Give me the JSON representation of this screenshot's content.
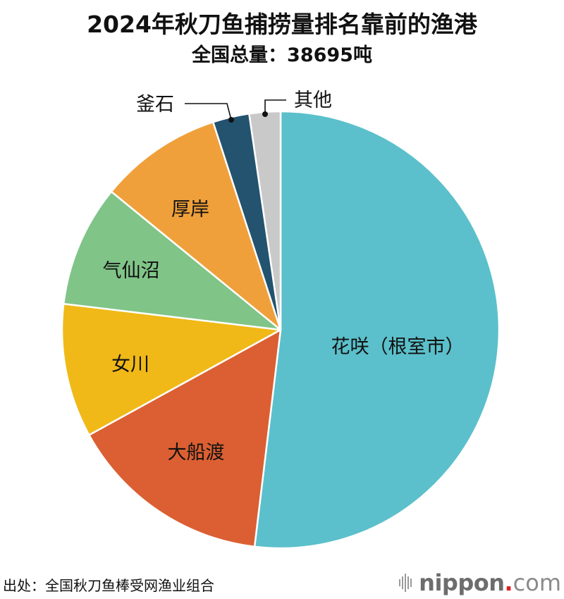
{
  "title": "2024年秋刀鱼捕捞量排名靠前的渔港",
  "subtitle": "全国总量：38695吨",
  "source": "出处：全国秋刀鱼棒受网渔业组合",
  "logo": {
    "name": "nippon",
    "dot": ".",
    "tld": "com",
    "bars-icon": "sound-bars-icon"
  },
  "chart_data": {
    "type": "pie",
    "title": "2024年秋刀鱼捕捞量排名靠前的渔港",
    "subtitle": "全国总量：38695吨",
    "total": 38695,
    "unit": "吨",
    "start_angle": "12 o'clock, clockwise",
    "categories": [
      "花咲（根室市）",
      "大船渡",
      "女川",
      "气仙沼",
      "厚岸",
      "釜石",
      "其他"
    ],
    "values_percent_estimated": [
      51.9,
      15.1,
      9.9,
      9.0,
      9.1,
      2.7,
      2.3
    ],
    "colors": [
      "#5bc0cb",
      "#db5f32",
      "#f0b917",
      "#80c488",
      "#f0a03a",
      "#23536f",
      "#c9c9c9"
    ],
    "slices": [
      {
        "label": "花咲（根室市）",
        "percent": 51.9,
        "color": "#5bc0cb"
      },
      {
        "label": "大船渡",
        "percent": 15.1,
        "color": "#db5f32"
      },
      {
        "label": "女川",
        "percent": 9.9,
        "color": "#f0b917"
      },
      {
        "label": "气仙沼",
        "percent": 9.0,
        "color": "#80c488"
      },
      {
        "label": "厚岸",
        "percent": 9.1,
        "color": "#f0a03a"
      },
      {
        "label": "釜石",
        "percent": 2.7,
        "color": "#23536f"
      },
      {
        "label": "其他",
        "percent": 2.3,
        "color": "#c9c9c9"
      }
    ],
    "legend": "none (labels on/near slices)"
  }
}
